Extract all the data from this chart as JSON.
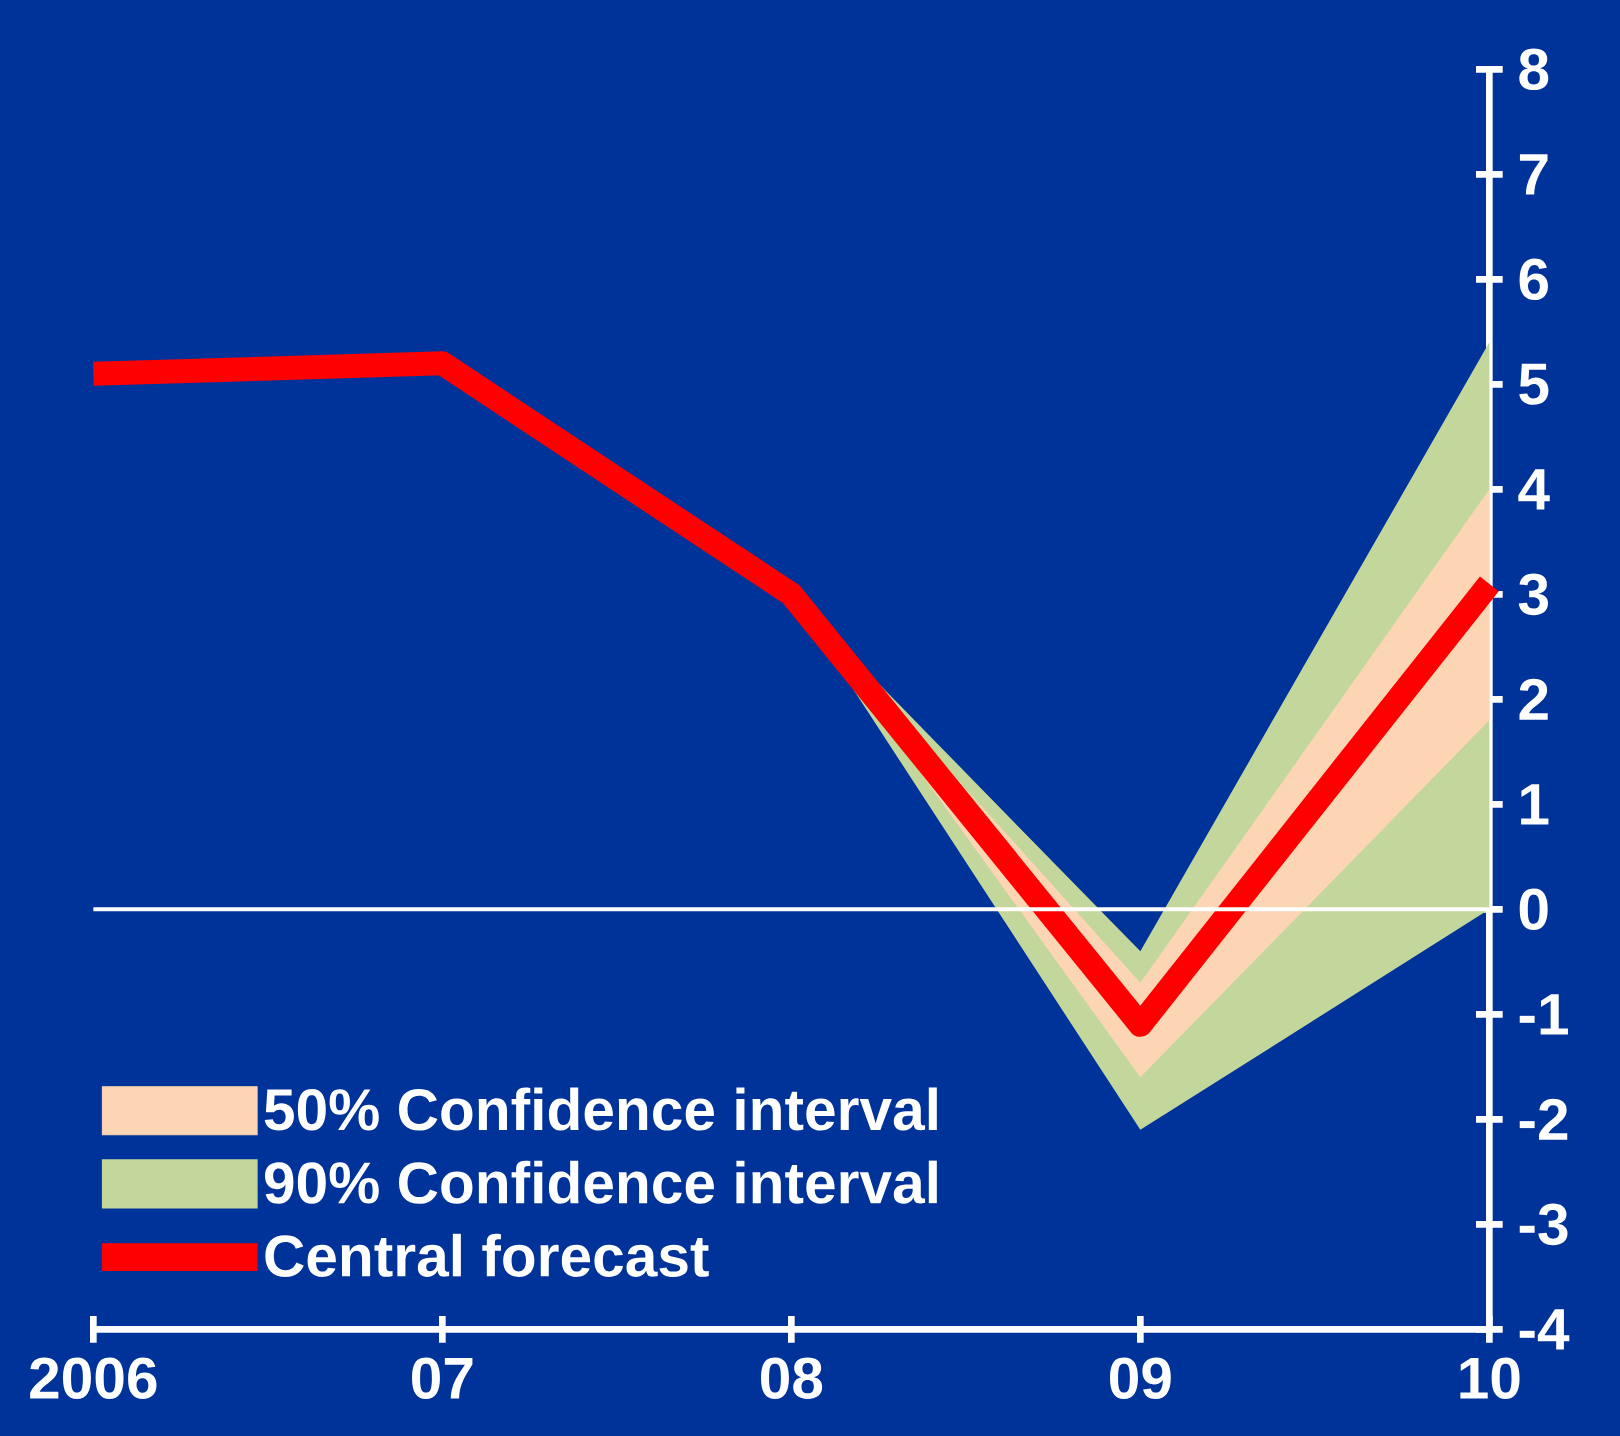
{
  "chart_data": {
    "type": "line",
    "categories": [
      "2006",
      "07",
      "08",
      "09",
      "10"
    ],
    "series": [
      {
        "name": "50% Confidence interval",
        "type": "area",
        "color": "#fcd5b5",
        "values": [
          null,
          null,
          null,
          null,
          null
        ],
        "lower": [
          null,
          null,
          3.0,
          -1.6,
          1.8
        ],
        "upper": [
          null,
          null,
          3.0,
          -0.7,
          4.0
        ]
      },
      {
        "name": "90% Confidence interval",
        "type": "area",
        "color": "#c3d69b",
        "values": [
          null,
          null,
          null,
          null,
          null
        ],
        "lower": [
          null,
          null,
          3.0,
          -2.1,
          0.0
        ],
        "upper": [
          null,
          null,
          3.0,
          -0.4,
          5.4
        ]
      },
      {
        "name": "Central forecast",
        "color": "#ff0000",
        "values": [
          5.1,
          5.2,
          3.0,
          -1.1,
          3.1
        ]
      }
    ],
    "ylim": [
      -4,
      8
    ],
    "yticks": [
      -4,
      -3,
      -2,
      -1,
      0,
      1,
      2,
      3,
      4,
      5,
      6,
      7,
      8
    ],
    "ref_lines": [
      {
        "axis": "y",
        "value": 0,
        "color": "#ffffff"
      }
    ],
    "legend": "bottom left",
    "grid": false
  }
}
